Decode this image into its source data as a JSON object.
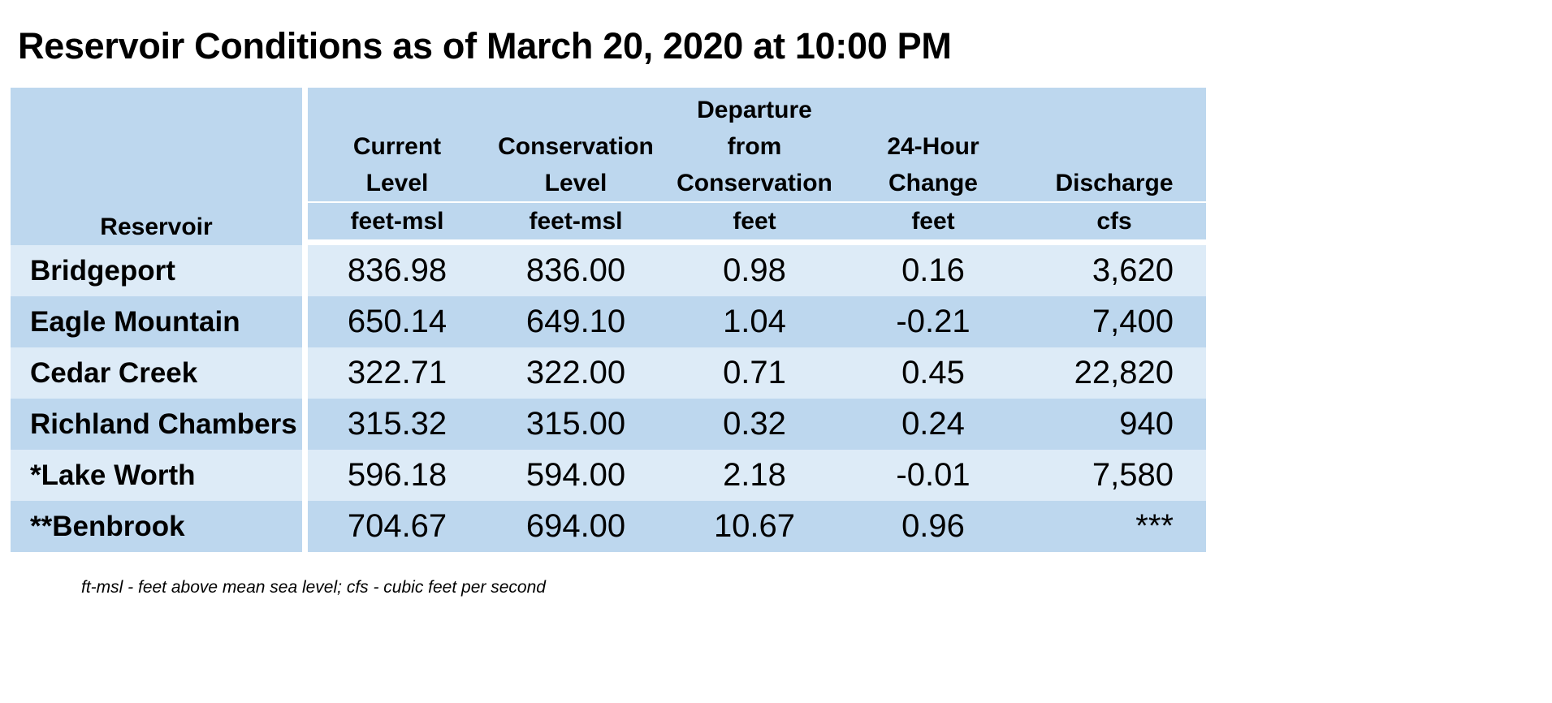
{
  "title": "Reservoir Conditions as of March 20, 2020 at 10:00 PM",
  "table": {
    "headers": [
      {
        "lines": [],
        "unit": "Reservoir"
      },
      {
        "lines": [
          "Current",
          "Level"
        ],
        "unit": "feet-msl"
      },
      {
        "lines": [
          "Conservation",
          "Level"
        ],
        "unit": "feet-msl"
      },
      {
        "lines": [
          "Departure",
          "from",
          "Conservation"
        ],
        "unit": "feet"
      },
      {
        "lines": [
          "24-Hour",
          "Change"
        ],
        "unit": "feet"
      },
      {
        "lines": [
          "Discharge"
        ],
        "unit": "cfs"
      }
    ],
    "rows": [
      {
        "reservoir": "Bridgeport",
        "current": "836.98",
        "conservation": "836.00",
        "departure": "0.98",
        "change": "0.16",
        "discharge": "3,620"
      },
      {
        "reservoir": "Eagle Mountain",
        "current": "650.14",
        "conservation": "649.10",
        "departure": "1.04",
        "change": "-0.21",
        "discharge": "7,400"
      },
      {
        "reservoir": "Cedar Creek",
        "current": "322.71",
        "conservation": "322.00",
        "departure": "0.71",
        "change": "0.45",
        "discharge": "22,820"
      },
      {
        "reservoir": "Richland Chambers",
        "current": "315.32",
        "conservation": "315.00",
        "departure": "0.32",
        "change": "0.24",
        "discharge": "940"
      },
      {
        "reservoir": "*Lake Worth",
        "current": "596.18",
        "conservation": "594.00",
        "departure": "2.18",
        "change": "-0.01",
        "discharge": "7,580"
      },
      {
        "reservoir": "**Benbrook",
        "current": "704.67",
        "conservation": "694.00",
        "departure": "10.67",
        "change": "0.96",
        "discharge": "***"
      }
    ]
  },
  "footnote": "ft-msl - feet above mean sea level; cfs - cubic feet per second",
  "colors": {
    "header_bg": "#bdd7ee",
    "row_light": "#ddebf7",
    "row_dark": "#bdd7ee",
    "separator": "#ffffff"
  }
}
